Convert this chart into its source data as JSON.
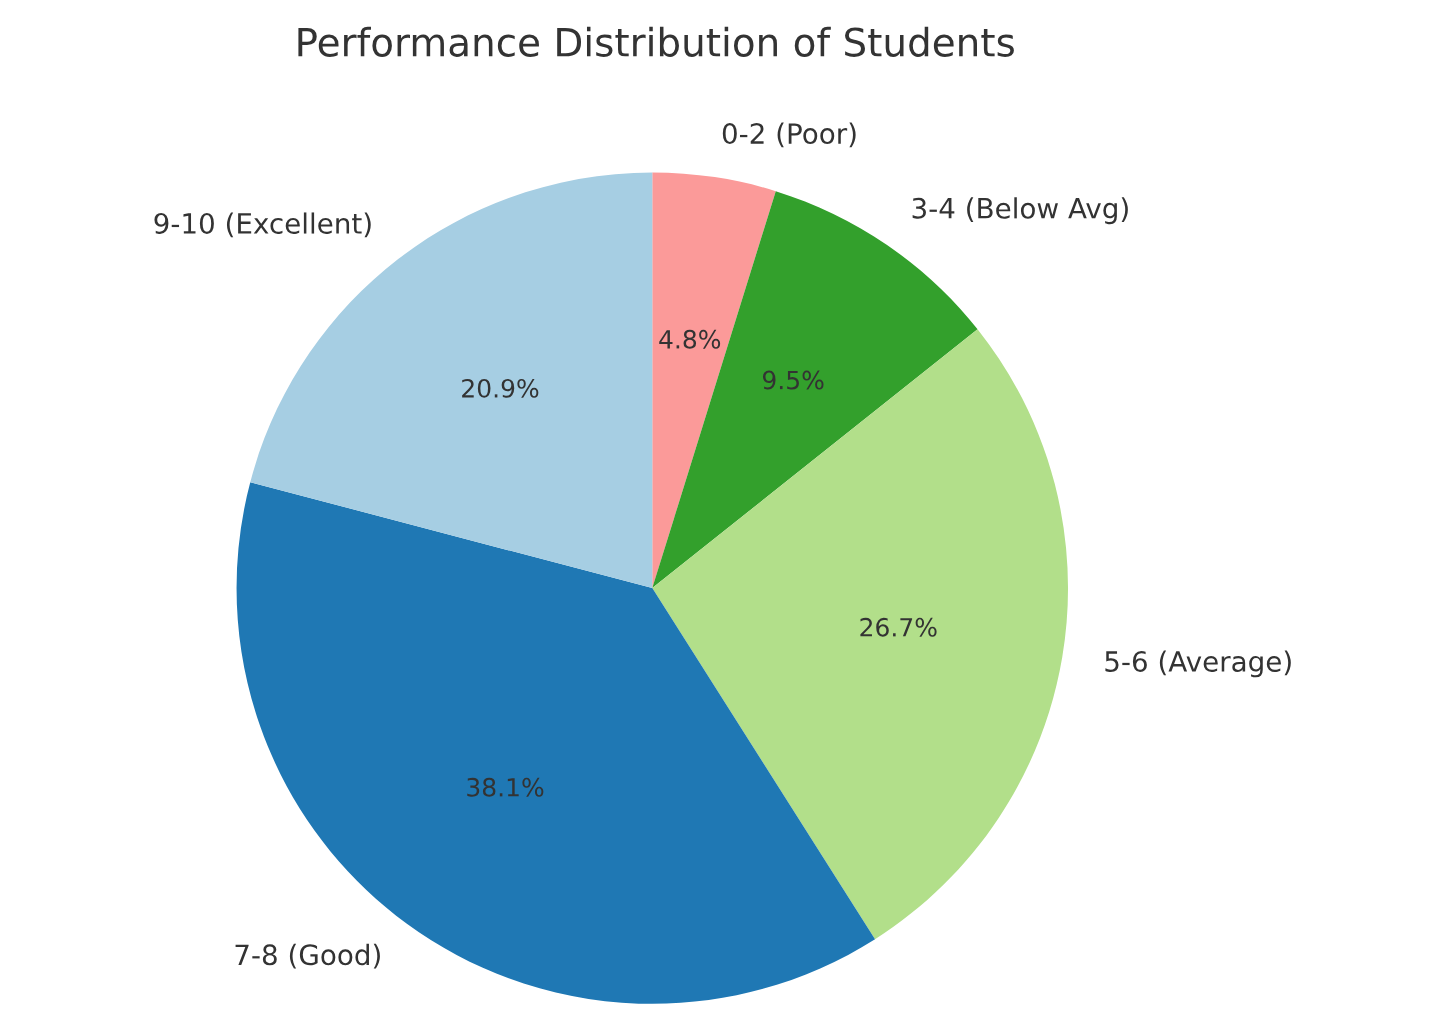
{
  "chart_data": {
    "type": "pie",
    "title": "Performance Distribution of Students",
    "categories": [
      "0-2 (Poor)",
      "3-4 (Below Avg)",
      "5-6 (Average)",
      "7-8 (Good)",
      "9-10 (Excellent)"
    ],
    "values": [
      4.8,
      9.5,
      26.7,
      38.1,
      20.9
    ],
    "colors": [
      "#fb9a99",
      "#33a02c",
      "#b2df8a",
      "#1f78b4",
      "#a6cee3"
    ],
    "value_labels": [
      "4.8%",
      "9.5%",
      "26.7%",
      "38.1%",
      "20.9%"
    ]
  }
}
